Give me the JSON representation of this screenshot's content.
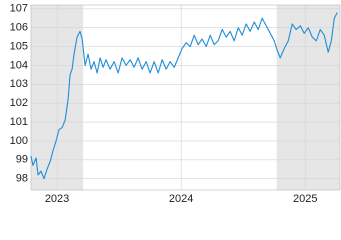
{
  "chart_data": {
    "type": "line",
    "x": [
      2022.79,
      2022.806,
      2022.831,
      2022.847,
      2022.871,
      2022.895,
      2022.919,
      2022.944,
      2022.968,
      2022.992,
      2023.016,
      2023.04,
      2023.065,
      2023.089,
      2023.105,
      2023.121,
      2023.137,
      2023.161,
      2023.185,
      2023.202,
      2023.226,
      2023.25,
      2023.274,
      2023.298,
      2023.323,
      2023.347,
      2023.371,
      2023.395,
      2023.427,
      2023.46,
      2023.492,
      2023.524,
      2023.556,
      2023.589,
      2023.621,
      2023.653,
      2023.685,
      2023.718,
      2023.75,
      2023.782,
      2023.815,
      2023.847,
      2023.879,
      2023.911,
      2023.944,
      2023.976,
      2024.008,
      2024.04,
      2024.073,
      2024.105,
      2024.137,
      2024.169,
      2024.202,
      2024.234,
      2024.266,
      2024.298,
      2024.331,
      2024.363,
      2024.395,
      2024.427,
      2024.46,
      2024.492,
      2024.524,
      2024.556,
      2024.589,
      2024.621,
      2024.653,
      2024.685,
      2024.718,
      2024.75,
      2024.774,
      2024.798,
      2024.831,
      2024.863,
      2024.895,
      2024.927,
      2024.96,
      2024.992,
      2025.024,
      2025.056,
      2025.089,
      2025.121,
      2025.153,
      2025.185,
      2025.21,
      2025.234,
      2025.258
    ],
    "values": [
      99.2,
      98.7,
      99.1,
      98.2,
      98.4,
      98.0,
      98.5,
      98.9,
      99.5,
      100.0,
      100.6,
      100.7,
      101.1,
      102.2,
      103.5,
      103.8,
      104.6,
      105.5,
      105.8,
      105.4,
      104.0,
      104.6,
      103.8,
      104.2,
      103.6,
      104.4,
      103.9,
      104.3,
      103.8,
      104.2,
      103.6,
      104.4,
      104.0,
      104.3,
      103.9,
      104.4,
      103.8,
      104.2,
      103.6,
      104.2,
      103.6,
      104.3,
      103.8,
      104.2,
      103.9,
      104.4,
      104.9,
      105.2,
      105.0,
      105.6,
      105.1,
      105.4,
      105.0,
      105.6,
      105.1,
      105.3,
      105.9,
      105.5,
      105.8,
      105.3,
      106.0,
      105.6,
      106.2,
      105.8,
      106.3,
      105.9,
      106.5,
      106.1,
      105.7,
      105.3,
      104.8,
      104.4,
      104.9,
      105.3,
      106.2,
      105.9,
      106.1,
      105.7,
      106.0,
      105.5,
      105.3,
      105.9,
      105.6,
      104.7,
      105.3,
      106.5,
      106.8
    ],
    "color": "#1f8dd6",
    "xlim": [
      2022.79,
      2025.28
    ],
    "xticks": [
      2023,
      2024,
      2025
    ],
    "ylim": [
      97.4,
      107.2
    ],
    "yticks": [
      98,
      99,
      100,
      101,
      102,
      103,
      104,
      105,
      106,
      107
    ],
    "grid": true,
    "shaded_ranges": [
      [
        2022.79,
        2023.21
      ],
      [
        2024.77,
        2025.28
      ]
    ]
  }
}
